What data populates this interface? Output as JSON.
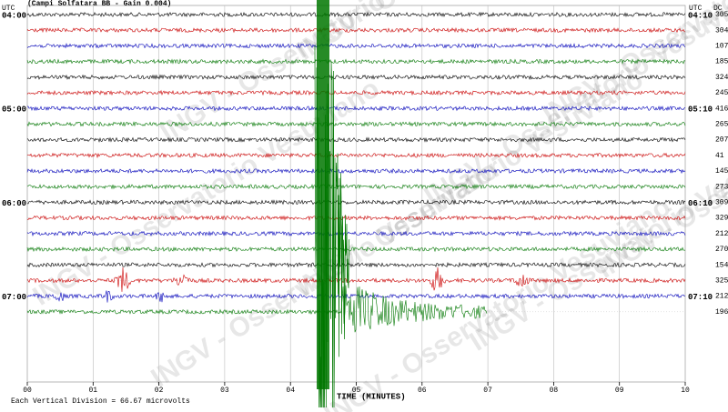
{
  "header": {
    "title": "(Campi Solfatara BB  - Gain 0.004)",
    "left_unit": "UTC",
    "right_unit": "UTC",
    "column_unit": "DC"
  },
  "rows": [
    {
      "left": "04:00",
      "right": "04:10",
      "value": 305
    },
    {
      "left": null,
      "right": null,
      "value": 304
    },
    {
      "left": null,
      "right": null,
      "value": 107
    },
    {
      "left": null,
      "right": null,
      "value": 185
    },
    {
      "left": null,
      "right": null,
      "value": 324
    },
    {
      "left": null,
      "right": null,
      "value": 245
    },
    {
      "left": "05:00",
      "right": "05:10",
      "value": 416
    },
    {
      "left": null,
      "right": null,
      "value": 265
    },
    {
      "left": null,
      "right": null,
      "value": 207
    },
    {
      "left": null,
      "right": null,
      "value": 41
    },
    {
      "left": null,
      "right": null,
      "value": 145
    },
    {
      "left": null,
      "right": null,
      "value": 273
    },
    {
      "left": "06:00",
      "right": "06:10",
      "value": 309
    },
    {
      "left": null,
      "right": null,
      "value": 329
    },
    {
      "left": null,
      "right": null,
      "value": 212
    },
    {
      "left": null,
      "right": null,
      "value": 270
    },
    {
      "left": null,
      "right": null,
      "value": 154
    },
    {
      "left": null,
      "right": null,
      "value": 325
    },
    {
      "left": "07:00",
      "right": "07:10",
      "value": 212
    },
    {
      "left": null,
      "right": null,
      "value": 196
    }
  ],
  "x_axis": {
    "title": "TIME (MINUTES)",
    "ticks": [
      {
        "value": 0,
        "label": "00"
      },
      {
        "value": 1,
        "label": "01"
      },
      {
        "value": 2,
        "label": "02"
      },
      {
        "value": 3,
        "label": "03"
      },
      {
        "value": 4,
        "label": "04"
      },
      {
        "value": 5,
        "label": "05"
      },
      {
        "value": 6,
        "label": "06"
      },
      {
        "value": 7,
        "label": "07"
      },
      {
        "value": 8,
        "label": "08"
      },
      {
        "value": 9,
        "label": "09"
      },
      {
        "value": 10,
        "label": "10"
      }
    ],
    "range": [
      0,
      10
    ]
  },
  "footer": {
    "note": "Each Vertical Division =   66.67 microvolts"
  },
  "watermark": "INGV - Osservatorio Vesuviano"
}
